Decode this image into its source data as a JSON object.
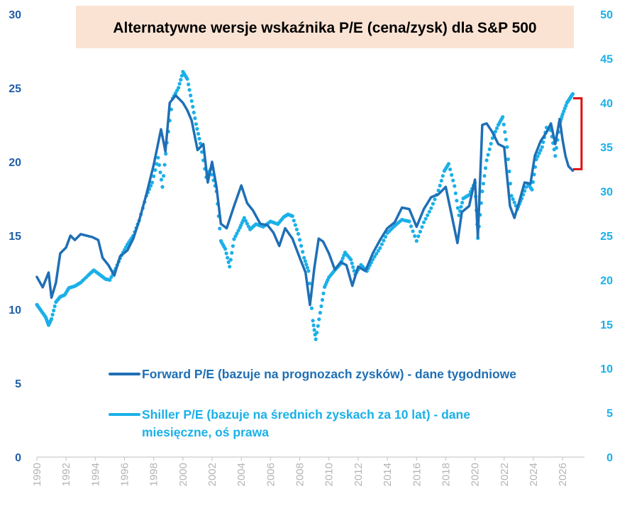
{
  "chart_data": {
    "type": "line",
    "title": "Alternatywne wersje wskaźnika P/E (cena/zysk) dla S&P 500",
    "x_ticks": [
      "1990",
      "1992",
      "1994",
      "1996",
      "1998",
      "2000",
      "2002",
      "2004",
      "2006",
      "2008",
      "2010",
      "2012",
      "2014",
      "2016",
      "2018",
      "2020",
      "2022",
      "2024",
      "2026"
    ],
    "xlim": [
      1990,
      2027.5
    ],
    "y_left": {
      "ticks": [
        "0",
        "5",
        "10",
        "15",
        "20",
        "25",
        "30"
      ],
      "ylim": [
        0,
        30
      ]
    },
    "y_right": {
      "ticks": [
        "0",
        "5",
        "10",
        "15",
        "20",
        "25",
        "30",
        "35",
        "40",
        "45",
        "50"
      ],
      "ylim": [
        0,
        50
      ]
    },
    "grid": false,
    "legend_position": "bottom-center",
    "colors": {
      "forward": "#1f6fb5",
      "shiller": "#1ab0e8",
      "bracket": "#e01010",
      "axis_left": "#1f5fa8",
      "axis_right": "#1ab0e8",
      "title_bg": "#fbe3d4"
    },
    "series": [
      {
        "name": "Forward P/E (bazuje na prognozach zysków) - dane tygodniowe",
        "axis": "left",
        "style": "line",
        "points": [
          [
            1990.0,
            12.2
          ],
          [
            1990.4,
            11.5
          ],
          [
            1990.8,
            12.5
          ],
          [
            1991.0,
            10.8
          ],
          [
            1991.3,
            11.8
          ],
          [
            1991.6,
            13.8
          ],
          [
            1992.0,
            14.2
          ],
          [
            1992.3,
            15.0
          ],
          [
            1992.6,
            14.7
          ],
          [
            1993.0,
            15.1
          ],
          [
            1993.4,
            15.0
          ],
          [
            1993.8,
            14.9
          ],
          [
            1994.2,
            14.7
          ],
          [
            1994.5,
            13.5
          ],
          [
            1994.9,
            13.0
          ],
          [
            1995.3,
            12.3
          ],
          [
            1995.7,
            13.6
          ],
          [
            1996.2,
            14.0
          ],
          [
            1996.6,
            14.8
          ],
          [
            1997.0,
            16.0
          ],
          [
            1997.5,
            17.8
          ],
          [
            1998.0,
            19.8
          ],
          [
            1998.5,
            22.2
          ],
          [
            1998.8,
            20.7
          ],
          [
            1999.1,
            24.0
          ],
          [
            1999.5,
            24.5
          ],
          [
            2000.0,
            24.0
          ],
          [
            2000.3,
            23.5
          ],
          [
            2000.6,
            22.8
          ],
          [
            2001.0,
            20.8
          ],
          [
            2001.4,
            21.2
          ],
          [
            2001.7,
            18.6
          ],
          [
            2002.0,
            20.0
          ],
          [
            2002.3,
            18.3
          ],
          [
            2002.6,
            15.8
          ],
          [
            2003.0,
            15.5
          ],
          [
            2003.5,
            17.0
          ],
          [
            2004.0,
            18.4
          ],
          [
            2004.4,
            17.2
          ],
          [
            2004.8,
            16.7
          ],
          [
            2005.3,
            15.8
          ],
          [
            2005.8,
            15.7
          ],
          [
            2006.2,
            15.2
          ],
          [
            2006.6,
            14.3
          ],
          [
            2007.0,
            15.5
          ],
          [
            2007.5,
            14.8
          ],
          [
            2008.0,
            13.5
          ],
          [
            2008.4,
            12.5
          ],
          [
            2008.7,
            10.3
          ],
          [
            2009.0,
            12.8
          ],
          [
            2009.3,
            14.8
          ],
          [
            2009.6,
            14.6
          ],
          [
            2010.0,
            13.8
          ],
          [
            2010.4,
            12.7
          ],
          [
            2010.8,
            13.2
          ],
          [
            2011.2,
            13.0
          ],
          [
            2011.6,
            11.6
          ],
          [
            2012.0,
            12.9
          ],
          [
            2012.5,
            12.6
          ],
          [
            2013.0,
            13.8
          ],
          [
            2013.5,
            14.7
          ],
          [
            2014.0,
            15.5
          ],
          [
            2014.5,
            15.9
          ],
          [
            2015.0,
            16.9
          ],
          [
            2015.5,
            16.8
          ],
          [
            2016.0,
            15.6
          ],
          [
            2016.5,
            16.8
          ],
          [
            2017.0,
            17.6
          ],
          [
            2017.5,
            17.8
          ],
          [
            2018.0,
            18.3
          ],
          [
            2018.4,
            16.4
          ],
          [
            2018.8,
            14.5
          ],
          [
            2019.1,
            16.6
          ],
          [
            2019.6,
            17.0
          ],
          [
            2020.0,
            18.8
          ],
          [
            2020.2,
            14.9
          ],
          [
            2020.5,
            22.5
          ],
          [
            2020.8,
            22.6
          ],
          [
            2021.2,
            22.0
          ],
          [
            2021.6,
            21.2
          ],
          [
            2022.0,
            21.0
          ],
          [
            2022.4,
            17.0
          ],
          [
            2022.7,
            16.2
          ],
          [
            2023.0,
            17.2
          ],
          [
            2023.4,
            18.6
          ],
          [
            2023.8,
            18.5
          ],
          [
            2024.1,
            20.4
          ],
          [
            2024.5,
            21.4
          ],
          [
            2024.9,
            22.0
          ],
          [
            2025.2,
            22.6
          ],
          [
            2025.5,
            21.2
          ],
          [
            2025.8,
            22.9
          ],
          [
            2026.0,
            21.5
          ],
          [
            2026.2,
            20.4
          ],
          [
            2026.4,
            19.7
          ],
          [
            2026.7,
            19.4
          ]
        ]
      },
      {
        "name": "Shiller P/E (bazuje na średnich zyskach za 10 lat) - dane miesięczne, oś prawa",
        "axis": "right",
        "style": "dots",
        "points": [
          [
            1990.0,
            17.2
          ],
          [
            1990.3,
            16.5
          ],
          [
            1990.6,
            15.8
          ],
          [
            1990.8,
            14.9
          ],
          [
            1991.0,
            15.6
          ],
          [
            1991.3,
            17.5
          ],
          [
            1991.6,
            18.1
          ],
          [
            1991.9,
            18.3
          ],
          [
            1992.2,
            19.1
          ],
          [
            1992.6,
            19.3
          ],
          [
            1993.0,
            19.7
          ],
          [
            1993.5,
            20.5
          ],
          [
            1993.9,
            21.1
          ],
          [
            1994.3,
            20.6
          ],
          [
            1994.7,
            20.1
          ],
          [
            1995.0,
            20.0
          ],
          [
            1995.4,
            21.3
          ],
          [
            1995.8,
            22.8
          ],
          [
            1996.2,
            24.0
          ],
          [
            1996.6,
            25.0
          ],
          [
            1997.0,
            26.7
          ],
          [
            1997.5,
            29.5
          ],
          [
            1997.9,
            31.0
          ],
          [
            1998.3,
            33.8
          ],
          [
            1998.6,
            30.5
          ],
          [
            1998.9,
            35.5
          ],
          [
            1999.3,
            40.5
          ],
          [
            1999.7,
            41.7
          ],
          [
            2000.0,
            43.5
          ],
          [
            2000.3,
            42.7
          ],
          [
            2000.6,
            40.2
          ],
          [
            2000.9,
            37.6
          ],
          [
            2001.2,
            35.4
          ],
          [
            2001.6,
            31.6
          ],
          [
            2001.9,
            32.5
          ],
          [
            2002.3,
            30.0
          ],
          [
            2002.6,
            24.4
          ],
          [
            2002.9,
            23.5
          ],
          [
            2003.2,
            21.5
          ],
          [
            2003.5,
            24.6
          ],
          [
            2003.9,
            25.9
          ],
          [
            2004.2,
            27.0
          ],
          [
            2004.6,
            25.7
          ],
          [
            2005.0,
            26.3
          ],
          [
            2005.5,
            26.0
          ],
          [
            2006.0,
            26.6
          ],
          [
            2006.5,
            26.3
          ],
          [
            2006.9,
            27.1
          ],
          [
            2007.2,
            27.4
          ],
          [
            2007.5,
            27.2
          ],
          [
            2007.9,
            25.2
          ],
          [
            2008.3,
            22.5
          ],
          [
            2008.6,
            21.0
          ],
          [
            2008.9,
            15.4
          ],
          [
            2009.1,
            13.3
          ],
          [
            2009.4,
            16.3
          ],
          [
            2009.7,
            19.2
          ],
          [
            2010.0,
            20.3
          ],
          [
            2010.4,
            21.1
          ],
          [
            2010.8,
            21.8
          ],
          [
            2011.1,
            23.1
          ],
          [
            2011.5,
            22.3
          ],
          [
            2011.8,
            20.6
          ],
          [
            2012.2,
            21.7
          ],
          [
            2012.6,
            21.0
          ],
          [
            2013.0,
            22.3
          ],
          [
            2013.5,
            23.6
          ],
          [
            2014.0,
            25.3
          ],
          [
            2014.5,
            26.1
          ],
          [
            2015.0,
            26.8
          ],
          [
            2015.5,
            26.6
          ],
          [
            2016.0,
            24.4
          ],
          [
            2016.5,
            26.5
          ],
          [
            2017.0,
            28.1
          ],
          [
            2017.5,
            30.1
          ],
          [
            2017.9,
            32.3
          ],
          [
            2018.2,
            33.1
          ],
          [
            2018.6,
            30.6
          ],
          [
            2018.9,
            27.3
          ],
          [
            2019.2,
            29.2
          ],
          [
            2019.6,
            29.6
          ],
          [
            2020.0,
            31.0
          ],
          [
            2020.2,
            24.7
          ],
          [
            2020.5,
            30.0
          ],
          [
            2020.8,
            33.5
          ],
          [
            2021.2,
            36.0
          ],
          [
            2021.6,
            37.5
          ],
          [
            2021.9,
            38.4
          ],
          [
            2022.2,
            35.0
          ],
          [
            2022.5,
            29.5
          ],
          [
            2022.9,
            28.0
          ],
          [
            2023.2,
            29.2
          ],
          [
            2023.6,
            30.9
          ],
          [
            2023.9,
            30.2
          ],
          [
            2024.2,
            33.6
          ],
          [
            2024.6,
            35.0
          ],
          [
            2024.9,
            37.2
          ],
          [
            2025.2,
            36.9
          ],
          [
            2025.5,
            34.0
          ],
          [
            2025.8,
            37.6
          ],
          [
            2026.0,
            38.7
          ],
          [
            2026.3,
            40.0
          ],
          [
            2026.5,
            40.5
          ],
          [
            2026.7,
            41.0
          ]
        ]
      }
    ],
    "annotation": {
      "type": "bracket",
      "x": 2027.3,
      "y_right_range": [
        32.5,
        40.5
      ]
    }
  }
}
